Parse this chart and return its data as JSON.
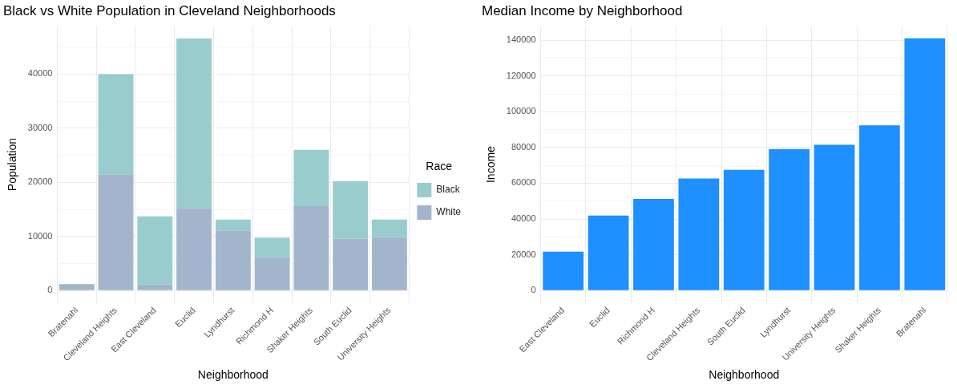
{
  "chart_data": [
    {
      "type": "bar",
      "title": "Black vs White Population in Cleveland Neighborhoods",
      "xlabel": "Neighborhood",
      "ylabel": "Population",
      "legend_title": "Race",
      "legend": "right",
      "stacked": true,
      "grid": true,
      "categories": [
        "Bratenahl",
        "Cleveland Heights",
        "East Cleveland",
        "Euclid",
        "Lyndhurst",
        "Richmond H",
        "Shaker Heights",
        "South Euclid",
        "University Heights"
      ],
      "series": [
        {
          "name": "White",
          "color": "#a3b5cd",
          "values": [
            1200,
            21500,
            1100,
            15200,
            11100,
            6200,
            15600,
            9600,
            9900
          ]
        },
        {
          "name": "Black",
          "color": "#99cccc",
          "values": [
            0,
            18500,
            12600,
            31400,
            2000,
            3600,
            10400,
            10600,
            3200
          ]
        }
      ],
      "ylim": [
        -2300,
        48900
      ],
      "yticks": [
        0,
        {
          "value": 5000,
          "label": null
        },
        10000,
        {
          "value": 15000,
          "label": null
        },
        20000,
        {
          "value": 25000,
          "label": null
        },
        30000,
        {
          "value": 35000,
          "label": null
        },
        40000,
        {
          "value": 45000,
          "label": null
        }
      ]
    },
    {
      "type": "bar",
      "title": "Median Income by Neighborhood",
      "xlabel": "Neighborhood",
      "ylabel": "Income",
      "grid": true,
      "categories": [
        "East Cleveland",
        "Euclid",
        "Richmond H",
        "Cleveland Heights",
        "South Euclid",
        "Lyndhurst",
        "University Heights",
        "Shaker Heights",
        "Bratenahl"
      ],
      "values": [
        21700,
        41900,
        51200,
        62700,
        67500,
        79100,
        81500,
        92400,
        141100
      ],
      "color": "#1e90ff",
      "ylim": [
        -7000,
        148000
      ],
      "yticks": [
        0,
        {
          "value": 10000,
          "label": null
        },
        20000,
        {
          "value": 30000,
          "label": null
        },
        40000,
        {
          "value": 50000,
          "label": null
        },
        60000,
        {
          "value": 70000,
          "label": null
        },
        80000,
        {
          "value": 90000,
          "label": null
        },
        100000,
        {
          "value": 110000,
          "label": null
        },
        120000,
        {
          "value": 130000,
          "label": null
        },
        140000
      ]
    }
  ]
}
